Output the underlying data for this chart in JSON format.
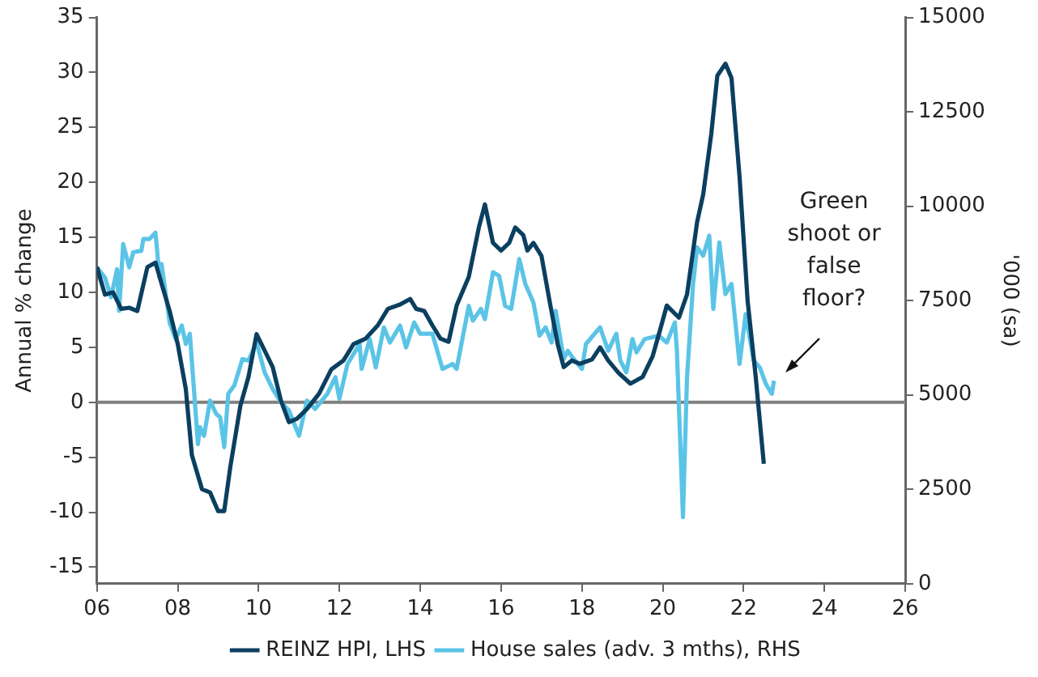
{
  "chart_data": {
    "type": "line",
    "ylabel": "Annual % change",
    "y2label": "'000 (sa)",
    "xlim": [
      2006,
      2026
    ],
    "xticks": [
      {
        "value": 2006,
        "label": "06"
      },
      {
        "value": 2008,
        "label": "08"
      },
      {
        "value": 2010,
        "label": "10"
      },
      {
        "value": 2012,
        "label": "12"
      },
      {
        "value": 2014,
        "label": "14"
      },
      {
        "value": 2016,
        "label": "16"
      },
      {
        "value": 2018,
        "label": "18"
      },
      {
        "value": 2020,
        "label": "20"
      },
      {
        "value": 2022,
        "label": "22"
      },
      {
        "value": 2024,
        "label": "24"
      },
      {
        "value": 2026,
        "label": "26"
      }
    ],
    "ylim": [
      -16.5,
      35
    ],
    "yticks": [
      -15,
      -10,
      -5,
      0,
      5,
      10,
      15,
      20,
      25,
      30,
      35
    ],
    "y2lim": [
      0,
      15000
    ],
    "y2ticks": [
      0,
      2500,
      5000,
      7500,
      10000,
      12500,
      15000
    ],
    "legend": "bottom",
    "line_style": "solid",
    "marker": "none",
    "ref_lines": [
      {
        "axis": "y",
        "value": 0,
        "color": "#808080"
      }
    ],
    "annotations": [
      "Green shoot or false floor?"
    ],
    "series": [
      {
        "name": "REINZ HPI, LHS",
        "color": "#0b3f60",
        "x": [
          2006.0,
          2006.2,
          2006.4,
          2006.6,
          2006.8,
          2007.0,
          2007.25,
          2007.45,
          2007.6,
          2007.8,
          2008.0,
          2008.2,
          2008.35,
          2008.6,
          2008.8,
          2009.0,
          2009.15,
          2009.3,
          2009.55,
          2009.75,
          2009.95,
          2010.15,
          2010.35,
          2010.55,
          2010.75,
          2010.95,
          2011.2,
          2011.5,
          2011.8,
          2012.1,
          2012.35,
          2012.65,
          2012.95,
          2013.2,
          2013.5,
          2013.75,
          2013.9,
          2014.1,
          2014.3,
          2014.5,
          2014.7,
          2014.9,
          2015.2,
          2015.45,
          2015.6,
          2015.8,
          2016.0,
          2016.2,
          2016.35,
          2016.55,
          2016.65,
          2016.8,
          2017.0,
          2017.2,
          2017.4,
          2017.55,
          2017.75,
          2017.95,
          2018.25,
          2018.45,
          2018.65,
          2018.9,
          2019.2,
          2019.5,
          2019.75,
          2019.95,
          2020.1,
          2020.4,
          2020.6,
          2020.85,
          2021.0,
          2021.2,
          2021.35,
          2021.55,
          2021.7,
          2021.9,
          2022.1,
          2022.3,
          2022.5
        ],
        "values": [
          12.3,
          9.8,
          10,
          8.5,
          8.6,
          8.3,
          12.3,
          12.7,
          10.8,
          8.3,
          5.3,
          1.2,
          -4.8,
          -7.9,
          -8.2,
          -9.9,
          -9.9,
          -5.9,
          -0.3,
          2.3,
          6.2,
          4.7,
          3.2,
          0.2,
          -1.8,
          -1.5,
          -0.6,
          0.8,
          3.0,
          3.8,
          5.3,
          5.8,
          7.0,
          8.5,
          8.9,
          9.4,
          8.5,
          8.3,
          7.0,
          5.8,
          5.5,
          8.8,
          11.4,
          15.9,
          18.0,
          14.5,
          13.8,
          14.5,
          15.9,
          15.2,
          13.8,
          14.5,
          13.3,
          9.2,
          5.3,
          3.2,
          3.8,
          3.5,
          3.9,
          5.0,
          3.8,
          2.7,
          1.7,
          2.3,
          4.2,
          6.8,
          8.8,
          7.7,
          9.8,
          16.4,
          18.9,
          24.4,
          29.7,
          30.8,
          29.5,
          20.5,
          9.2,
          2.3,
          -5.6
        ]
      },
      {
        "name": "House sales (adv. 3 mths), RHS",
        "color": "#5bc4e6",
        "axis": "y2",
        "x": [
          2006.0,
          2006.2,
          2006.35,
          2006.5,
          2006.55,
          2006.65,
          2006.8,
          2006.9,
          2007.1,
          2007.15,
          2007.3,
          2007.45,
          2007.55,
          2007.6,
          2007.8,
          2007.95,
          2008.1,
          2008.2,
          2008.3,
          2008.5,
          2008.55,
          2008.65,
          2008.8,
          2008.95,
          2009.05,
          2009.15,
          2009.25,
          2009.4,
          2009.6,
          2009.75,
          2009.95,
          2010.15,
          2010.35,
          2010.55,
          2010.75,
          2011.0,
          2011.2,
          2011.4,
          2011.7,
          2011.9,
          2012.0,
          2012.2,
          2012.5,
          2012.55,
          2012.75,
          2012.9,
          2013.1,
          2013.25,
          2013.5,
          2013.65,
          2013.85,
          2014.0,
          2014.3,
          2014.55,
          2014.8,
          2014.9,
          2015.2,
          2015.3,
          2015.5,
          2015.6,
          2015.8,
          2015.95,
          2016.1,
          2016.25,
          2016.45,
          2016.6,
          2016.8,
          2016.95,
          2017.1,
          2017.25,
          2017.35,
          2017.55,
          2017.65,
          2017.8,
          2018.0,
          2018.1,
          2018.45,
          2018.65,
          2018.85,
          2018.95,
          2019.1,
          2019.25,
          2019.35,
          2019.55,
          2019.9,
          2020.1,
          2020.3,
          2020.35,
          2020.5,
          2020.6,
          2020.75,
          2020.85,
          2021.0,
          2021.15,
          2021.25,
          2021.4,
          2021.55,
          2021.7,
          2021.9,
          2022.05,
          2022.25,
          2022.4,
          2022.55,
          2022.7,
          2022.75
        ],
        "values": [
          8380,
          8110,
          7590,
          8330,
          7230,
          9000,
          8380,
          8780,
          8820,
          9130,
          9130,
          9300,
          8110,
          8470,
          6920,
          6480,
          6840,
          6350,
          6620,
          3700,
          4150,
          3920,
          4850,
          4500,
          4410,
          3620,
          5030,
          5250,
          5950,
          5910,
          6390,
          5600,
          5160,
          4810,
          4590,
          3920,
          4850,
          4630,
          5030,
          5470,
          4900,
          5820,
          6350,
          5690,
          6480,
          5730,
          6790,
          6390,
          6840,
          6260,
          6920,
          6620,
          6620,
          5690,
          5820,
          5690,
          7360,
          6970,
          7280,
          7010,
          8250,
          8160,
          7360,
          7280,
          8600,
          7940,
          7450,
          6570,
          6790,
          6390,
          7230,
          5950,
          6170,
          5950,
          5690,
          6350,
          6790,
          6170,
          6620,
          5910,
          5600,
          6480,
          6130,
          6480,
          6570,
          6390,
          6920,
          6170,
          1760,
          5470,
          7940,
          8910,
          8690,
          9220,
          7280,
          9040,
          7670,
          7940,
          5820,
          7140,
          5910,
          5730,
          5290,
          5030,
          5380
        ]
      }
    ]
  }
}
